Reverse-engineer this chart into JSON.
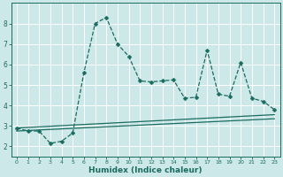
{
  "xlabel": "Humidex (Indice chaleur)",
  "bg_color": "#cde8e8",
  "grid_color": "#ffffff",
  "line_color": "#1a6b60",
  "xlim": [
    -0.5,
    23.5
  ],
  "ylim": [
    1.5,
    9.0
  ],
  "xticks": [
    0,
    1,
    2,
    3,
    4,
    5,
    6,
    7,
    8,
    9,
    10,
    11,
    12,
    13,
    14,
    15,
    16,
    17,
    18,
    19,
    20,
    21,
    22,
    23
  ],
  "yticks": [
    2,
    3,
    4,
    5,
    6,
    7,
    8
  ],
  "series_main": {
    "x": [
      0,
      1,
      2,
      3,
      4,
      5,
      6,
      7,
      8,
      9,
      10,
      11,
      12,
      13,
      14,
      15,
      16,
      17,
      18,
      19,
      20,
      21,
      22,
      23
    ],
    "y": [
      2.9,
      2.75,
      2.75,
      2.15,
      2.25,
      2.65,
      5.6,
      8.0,
      8.3,
      7.0,
      6.4,
      5.2,
      5.15,
      5.2,
      5.25,
      4.35,
      4.4,
      6.7,
      4.55,
      4.45,
      6.1,
      4.35,
      4.2,
      3.8
    ]
  },
  "series_trend1": {
    "x": [
      0,
      23
    ],
    "y": [
      2.9,
      3.55
    ]
  },
  "series_trend2": {
    "x": [
      0,
      23
    ],
    "y": [
      2.75,
      3.35
    ]
  },
  "xtick_fontsize": 4.5,
  "ytick_fontsize": 5.5,
  "xlabel_fontsize": 6.5,
  "markersize": 2.5,
  "linewidth": 0.9
}
